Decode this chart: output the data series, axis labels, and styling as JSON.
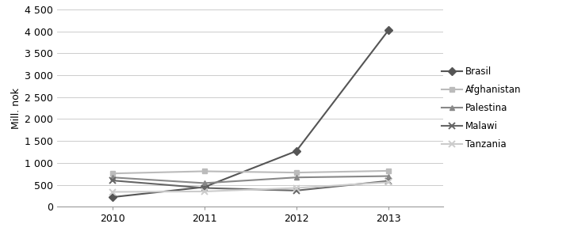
{
  "years": [
    2010,
    2011,
    2012,
    2013
  ],
  "series": {
    "Brasil": [
      220,
      450,
      1270,
      4020
    ],
    "Afghanistan": [
      760,
      810,
      780,
      820
    ],
    "Palestina": [
      670,
      540,
      670,
      700
    ],
    "Malawi": [
      600,
      430,
      370,
      590
    ],
    "Tanzania": [
      340,
      350,
      430,
      560
    ]
  },
  "markers": {
    "Brasil": "D",
    "Afghanistan": "s",
    "Palestina": "^",
    "Malawi": "x",
    "Tanzania": "x"
  },
  "colors": {
    "Brasil": "#555555",
    "Afghanistan": "#bbbbbb",
    "Palestina": "#888888",
    "Malawi": "#666666",
    "Tanzania": "#cccccc"
  },
  "line_widths": {
    "Brasil": 1.5,
    "Afghanistan": 1.5,
    "Palestina": 1.5,
    "Malawi": 1.5,
    "Tanzania": 1.5
  },
  "legend_labels": [
    "Brasil",
    "Afghanistan",
    "Palestina",
    "Malawi",
    "Tanzania"
  ],
  "ylim": [
    0,
    4500
  ],
  "yticks": [
    0,
    500,
    1000,
    1500,
    2000,
    2500,
    3000,
    3500,
    4000,
    4500
  ],
  "ylabel": "Mill. nok",
  "background_color": "#ffffff"
}
